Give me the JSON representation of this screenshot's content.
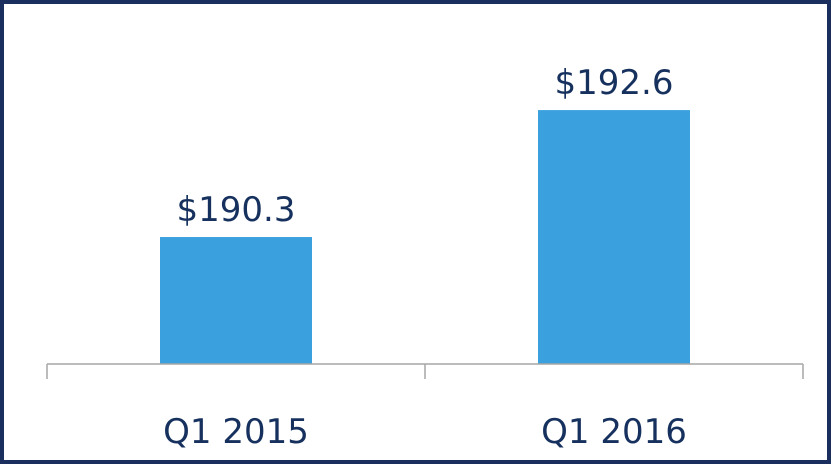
{
  "chart_data": {
    "type": "bar",
    "categories": [
      "Q1 2015",
      "Q1 2016"
    ],
    "values": [
      190.3,
      192.6
    ],
    "value_labels": [
      "$190.3",
      "$192.6"
    ],
    "color": "#3aa0de",
    "ylim": [
      188,
      193
    ]
  }
}
